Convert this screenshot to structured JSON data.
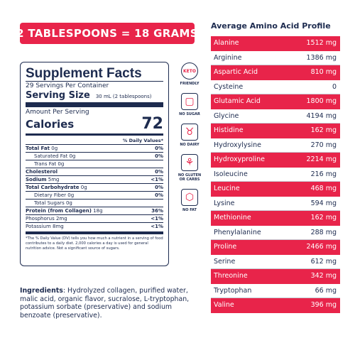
{
  "banner": "2 TABLESPOONS = 18 GRAMS",
  "facts": {
    "title": "Supplement Facts",
    "servings": "29 Servings Per Container",
    "serving_size_label": "Serving Size",
    "serving_size_value": "30 mL (2 tablespoons)",
    "amount_per_serving": "Amount Per Serving",
    "calories_label": "Calories",
    "calories_value": "72",
    "dv_header": "% Daily Values*",
    "rows": [
      {
        "label": "Total Fat",
        "amount": "0g",
        "dv": "0%"
      },
      {
        "label": "Saturated Fat",
        "amount": "0g",
        "dv": "0%"
      },
      {
        "label": "Trans Fat",
        "amount": "0g",
        "dv": ""
      },
      {
        "label": "Cholesterol",
        "amount": "",
        "dv": "0%"
      },
      {
        "label": "Sodium",
        "amount": "5mg",
        "dv": "<1%"
      },
      {
        "label": "Total Carbohydrate",
        "amount": "0g",
        "dv": "0%"
      },
      {
        "label": "Dietary Fiber",
        "amount": "0g",
        "dv": "0%"
      },
      {
        "label": "Total Sugars",
        "amount": "0g",
        "dv": ""
      },
      {
        "label": "Protein (from Collagen)",
        "amount": "18g",
        "dv": "36%"
      },
      {
        "label": "Phosphorus",
        "amount": "2mg",
        "dv": "<1%"
      },
      {
        "label": "Potassium",
        "amount": "8mg",
        "dv": "<1%"
      }
    ],
    "footnote": "*The % Daily Value (DV) tells you how much a nutrient in a serving of food contributes to a daily diet. 2,000 calories a day is used for general nutrition advice. Not a significant source of sugars."
  },
  "icons": [
    {
      "name": "keto-icon",
      "glyph": "KETO",
      "caption": "FRIENDLY"
    },
    {
      "name": "no-sugar-icon",
      "glyph": "▢",
      "caption": "NO SUGAR"
    },
    {
      "name": "no-dairy-icon",
      "glyph": "♉",
      "caption": "NO DAIRY"
    },
    {
      "name": "no-gluten-icon",
      "glyph": "⚘",
      "caption": "NO GLUTEN OR CARBS"
    },
    {
      "name": "no-fat-icon",
      "glyph": "⬡",
      "caption": "NO FAT"
    }
  ],
  "ingredients_label": "Ingredients",
  "ingredients_text": ": Hydrolyzed collagen, purified water, malic acid, organic flavor, sucralose, L-tryptophan, potassium sorbate (preservative) and sodium benzoate (preservative).",
  "amino": {
    "title": "Average Amino Acid Profile",
    "rows": [
      {
        "name": "Alanine",
        "value": "1512 mg"
      },
      {
        "name": "Arginine",
        "value": "1386 mg"
      },
      {
        "name": "Aspartic Acid",
        "value": "810 mg"
      },
      {
        "name": "Cysteine",
        "value": "0"
      },
      {
        "name": "Glutamic Acid",
        "value": "1800 mg"
      },
      {
        "name": "Glycine",
        "value": "4194 mg"
      },
      {
        "name": "Histidine",
        "value": "162 mg"
      },
      {
        "name": "Hydroxylysine",
        "value": "270 mg"
      },
      {
        "name": "Hydroxyproline",
        "value": "2214 mg"
      },
      {
        "name": "Isoleucine",
        "value": "216 mg"
      },
      {
        "name": "Leucine",
        "value": "468 mg"
      },
      {
        "name": "Lysine",
        "value": "594 mg"
      },
      {
        "name": "Methionine",
        "value": "162 mg"
      },
      {
        "name": "Phenylalanine",
        "value": "288 mg"
      },
      {
        "name": "Proline",
        "value": "2466 mg"
      },
      {
        "name": "Serine",
        "value": "612 mg"
      },
      {
        "name": "Threonine",
        "value": "342 mg"
      },
      {
        "name": "Tryptophan",
        "value": "66 mg"
      },
      {
        "name": "Valine",
        "value": "396 mg"
      }
    ]
  }
}
